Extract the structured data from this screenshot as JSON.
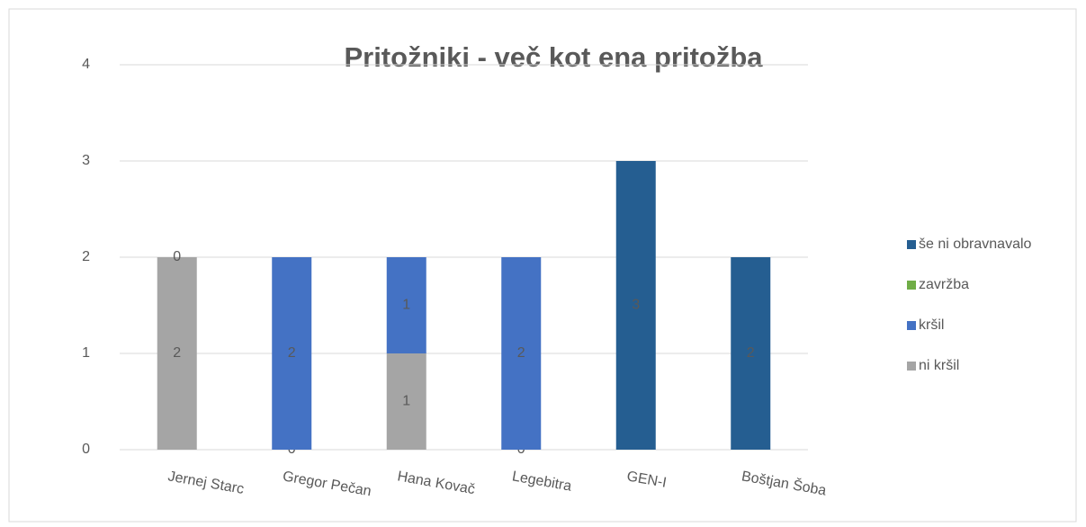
{
  "chart_data": {
    "type": "stacked_bar",
    "title": "Pritožniki - več kot ena pritožba",
    "categories": [
      "Jernej Starc",
      "Gregor Pečan",
      "Hana Kovač",
      "Legebitra",
      "GEN-I",
      "Boštjan Šoba"
    ],
    "series": [
      {
        "name": "ni kršil",
        "color": "#a5a5a5",
        "values": [
          2,
          0,
          1,
          0,
          null,
          null
        ]
      },
      {
        "name": "kršil",
        "color": "#4472c4",
        "values": [
          0,
          2,
          1,
          2,
          null,
          null
        ]
      },
      {
        "name": "zavržba",
        "color": "#70ad47",
        "values": [
          null,
          null,
          null,
          null,
          null,
          null
        ]
      },
      {
        "name": "še ni obravnavalo",
        "color": "#255e91",
        "values": [
          null,
          null,
          null,
          null,
          3,
          2
        ]
      }
    ],
    "ylim": [
      0,
      4
    ],
    "yticks": [
      0,
      1,
      2,
      3,
      4
    ],
    "grid": true,
    "legend": "right"
  }
}
